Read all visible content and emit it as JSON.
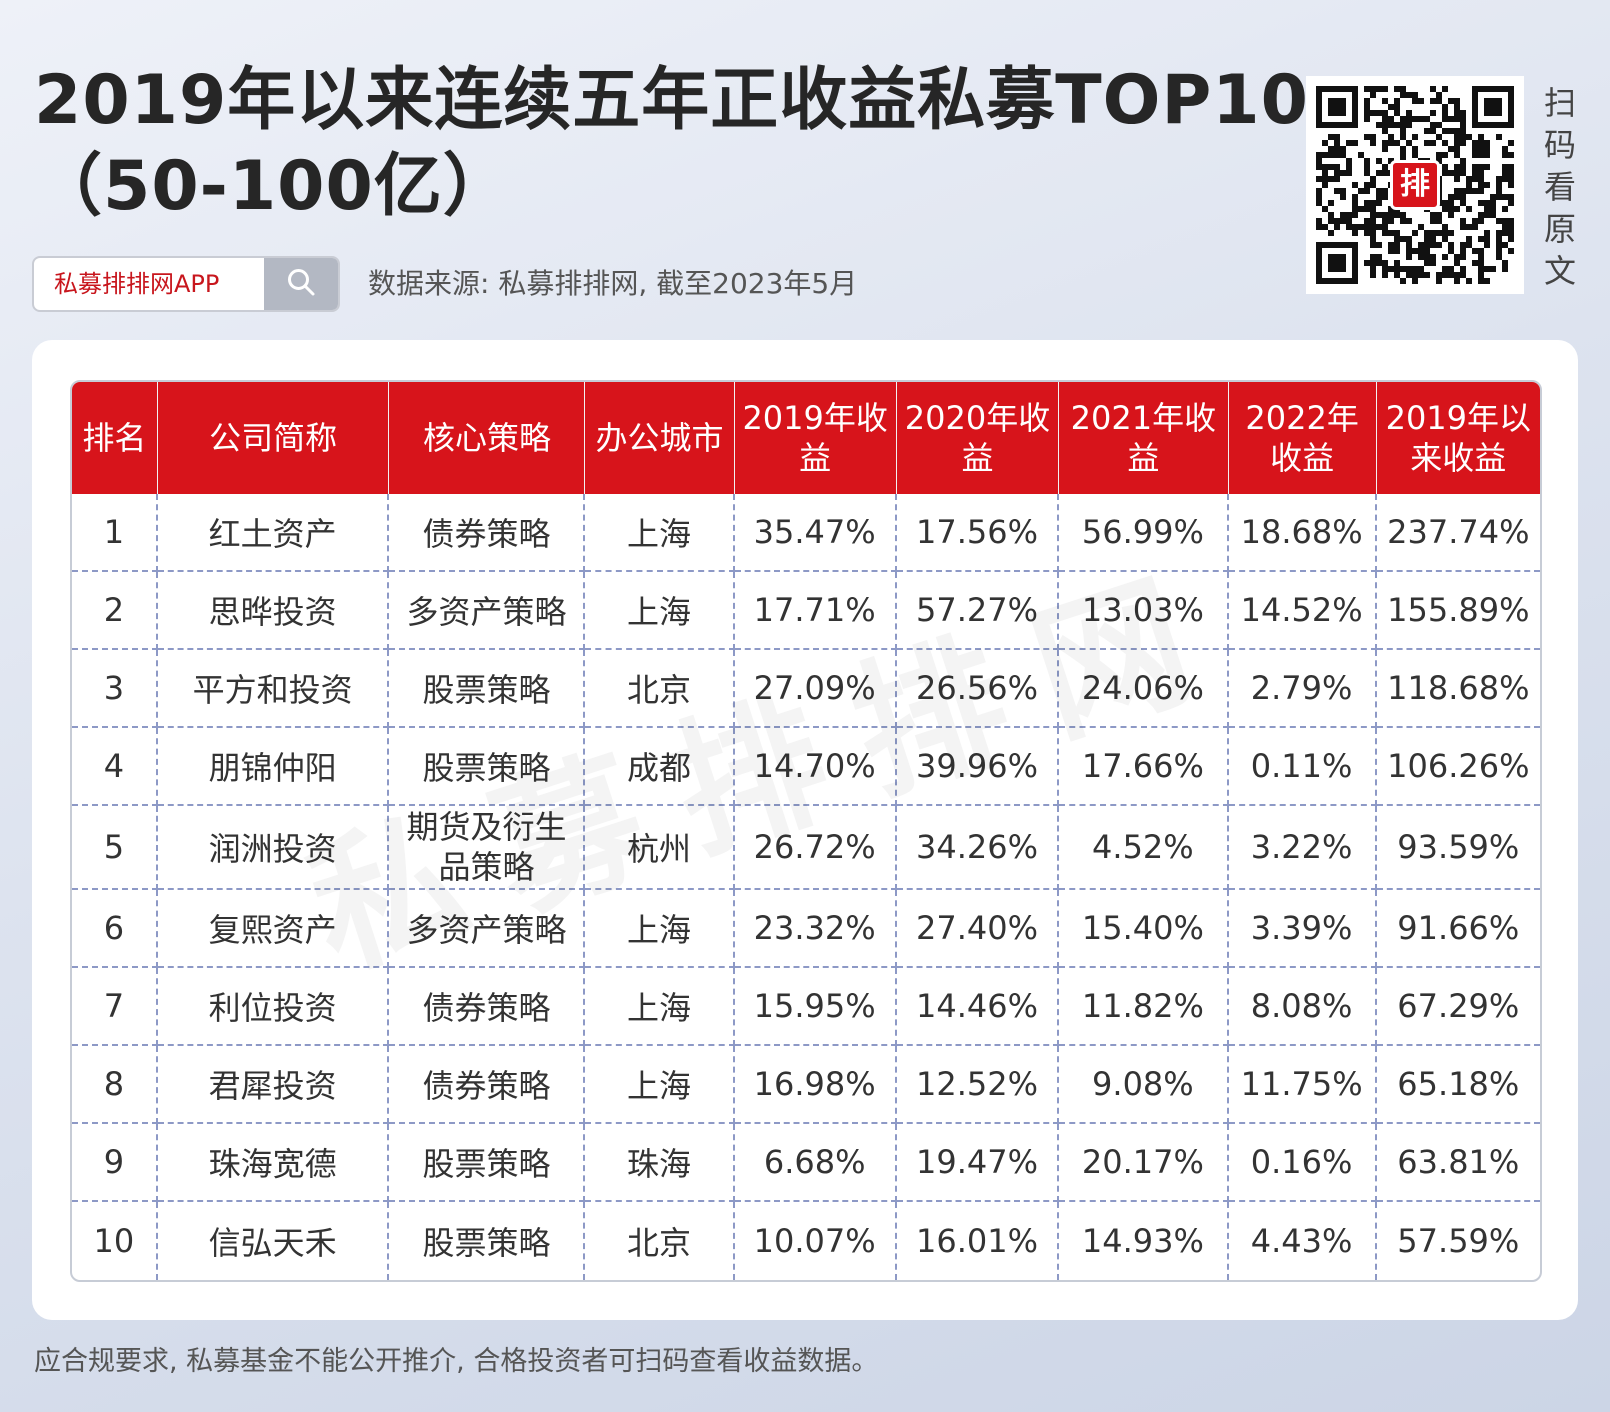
{
  "header": {
    "title_line1": "2019年以来连续五年正收益私募TOP10",
    "title_line2": "（50-100亿）"
  },
  "search": {
    "brand_text": "私募排排网APP",
    "icon": "search-icon"
  },
  "source_text": "数据来源: 私募排排网, 截至2023年5月",
  "qr": {
    "logo_text": "排",
    "caption": [
      "扫",
      "码",
      "看",
      "原",
      "文"
    ]
  },
  "watermark": "私募排排网",
  "table": {
    "columns": [
      "排名",
      "公司简称",
      "核心策略",
      "办公城市",
      "2019年收益",
      "2020年收益",
      "2021年收益",
      "2022年收益",
      "2019年以来收益"
    ],
    "rows": [
      [
        "1",
        "红土资产",
        "债券策略",
        "上海",
        "35.47%",
        "17.56%",
        "56.99%",
        "18.68%",
        "237.74%"
      ],
      [
        "2",
        "思晔投资",
        "多资产策略",
        "上海",
        "17.71%",
        "57.27%",
        "13.03%",
        "14.52%",
        "155.89%"
      ],
      [
        "3",
        "平方和投资",
        "股票策略",
        "北京",
        "27.09%",
        "26.56%",
        "24.06%",
        "2.79%",
        "118.68%"
      ],
      [
        "4",
        "朋锦仲阳",
        "股票策略",
        "成都",
        "14.70%",
        "39.96%",
        "17.66%",
        "0.11%",
        "106.26%"
      ],
      [
        "5",
        "润洲投资",
        "期货及衍生品策略",
        "杭州",
        "26.72%",
        "34.26%",
        "4.52%",
        "3.22%",
        "93.59%"
      ],
      [
        "6",
        "复熙资产",
        "多资产策略",
        "上海",
        "23.32%",
        "27.40%",
        "15.40%",
        "3.39%",
        "91.66%"
      ],
      [
        "7",
        "利位投资",
        "债券策略",
        "上海",
        "15.95%",
        "14.46%",
        "11.82%",
        "8.08%",
        "67.29%"
      ],
      [
        "8",
        "君犀投资",
        "债券策略",
        "上海",
        "16.98%",
        "12.52%",
        "9.08%",
        "11.75%",
        "65.18%"
      ],
      [
        "9",
        "珠海宽德",
        "股票策略",
        "珠海",
        "6.68%",
        "19.47%",
        "20.17%",
        "0.16%",
        "63.81%"
      ],
      [
        "10",
        "信弘天禾",
        "股票策略",
        "北京",
        "10.07%",
        "16.01%",
        "14.93%",
        "4.43%",
        "57.59%"
      ]
    ]
  },
  "footer_note": "应合规要求, 私募基金不能公开推介, 合格投资者可扫码查看收益数据。",
  "colors": {
    "header_red": "#d7141b",
    "brand_red": "#c8161d",
    "dashed_border": "#8d99c6"
  }
}
